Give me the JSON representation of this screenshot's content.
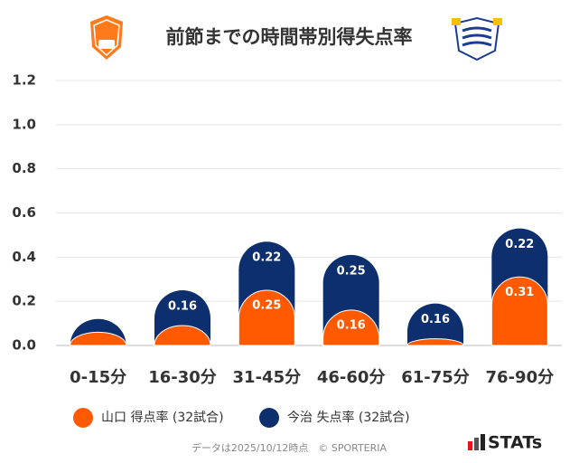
{
  "chart_data": {
    "type": "stacked_bar",
    "title": "前節までの時間帯別得失点率",
    "categories": [
      "0-15分",
      "16-30分",
      "31-45分",
      "46-60分",
      "61-75分",
      "76-90分"
    ],
    "series": [
      {
        "name": "山口 得点率 (32試合)",
        "color": "#ff5a00",
        "values": [
          0.06,
          0.09,
          0.25,
          0.16,
          0.03,
          0.31
        ],
        "value_labels": [
          null,
          null,
          "0.25",
          "0.16",
          null,
          "0.31"
        ]
      },
      {
        "name": "今治 失点率 (32試合)",
        "color": "#0d2f6e",
        "values": [
          0.06,
          0.16,
          0.22,
          0.25,
          0.16,
          0.22
        ],
        "value_labels": [
          null,
          "0.16",
          "0.22",
          "0.25",
          "0.16",
          "0.22"
        ]
      }
    ],
    "ylim": [
      0,
      1.2
    ],
    "yticks": [
      {
        "value": 0,
        "label": "0.0"
      },
      0.2,
      0.4,
      0.6,
      0.8,
      {
        "value": 1,
        "label": "1.0"
      },
      1.2
    ],
    "grid": true,
    "footer": "データは2025/10/12時点　© SPORTERIA",
    "brand": "STATs"
  }
}
